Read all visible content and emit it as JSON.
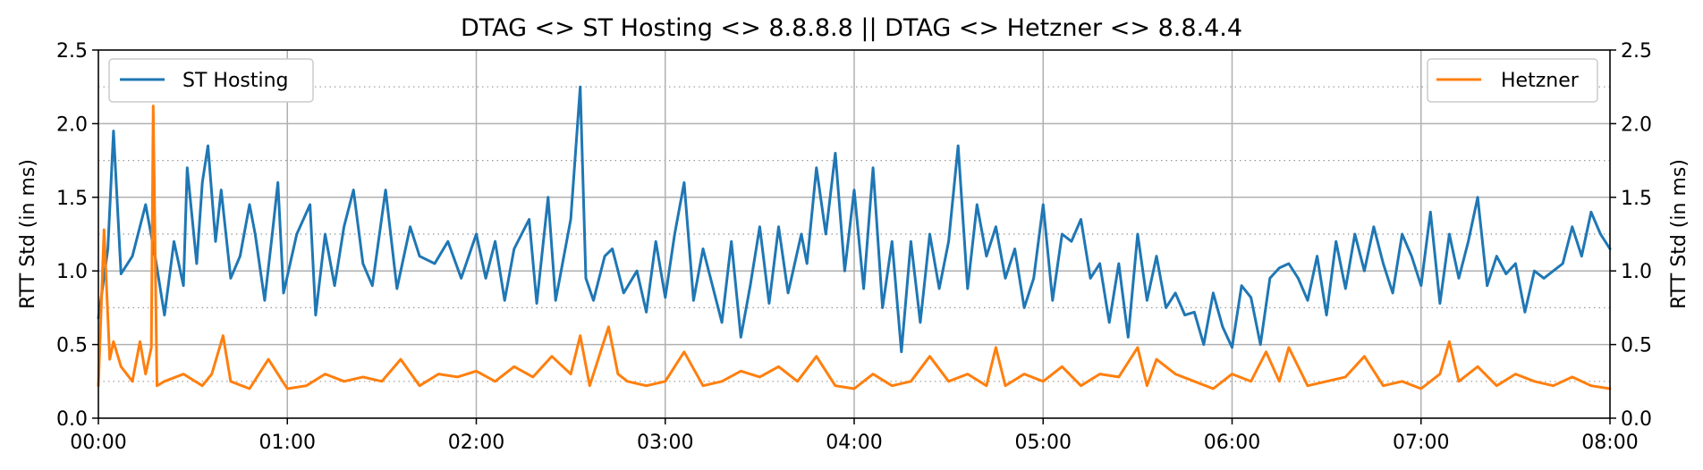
{
  "chart_data": {
    "type": "line",
    "title": "DTAG <> ST Hosting <> 8.8.8.8 || DTAG <> Hetzner <> 8.8.4.4",
    "xlabel": "",
    "ylabel_left": "RTT Std (in ms)",
    "ylabel_right": "RTT Std (in ms)",
    "x_range_hours": [
      0,
      8
    ],
    "x_ticks": [
      "00:00",
      "01:00",
      "02:00",
      "03:00",
      "04:00",
      "05:00",
      "06:00",
      "07:00",
      "08:00"
    ],
    "ylim": [
      0,
      2.5
    ],
    "y_ticks": [
      "0.0",
      "0.5",
      "1.0",
      "1.5",
      "2.0",
      "2.5"
    ],
    "grid": true,
    "minor_grid": "dotted at 0.25 steps",
    "series": [
      {
        "name": "ST Hosting",
        "color": "#1f77b4",
        "legend_position": "upper-left",
        "points": [
          [
            0.0,
            0.68
          ],
          [
            0.05,
            1.15
          ],
          [
            0.08,
            1.95
          ],
          [
            0.12,
            0.98
          ],
          [
            0.18,
            1.1
          ],
          [
            0.25,
            1.45
          ],
          [
            0.3,
            1.1
          ],
          [
            0.35,
            0.7
          ],
          [
            0.4,
            1.2
          ],
          [
            0.45,
            0.9
          ],
          [
            0.47,
            1.7
          ],
          [
            0.52,
            1.05
          ],
          [
            0.55,
            1.6
          ],
          [
            0.58,
            1.85
          ],
          [
            0.62,
            1.2
          ],
          [
            0.65,
            1.55
          ],
          [
            0.7,
            0.95
          ],
          [
            0.75,
            1.1
          ],
          [
            0.8,
            1.45
          ],
          [
            0.83,
            1.25
          ],
          [
            0.88,
            0.8
          ],
          [
            0.92,
            1.25
          ],
          [
            0.95,
            1.6
          ],
          [
            0.98,
            0.85
          ],
          [
            1.05,
            1.25
          ],
          [
            1.12,
            1.45
          ],
          [
            1.15,
            0.7
          ],
          [
            1.2,
            1.25
          ],
          [
            1.25,
            0.9
          ],
          [
            1.3,
            1.3
          ],
          [
            1.35,
            1.55
          ],
          [
            1.4,
            1.05
          ],
          [
            1.45,
            0.9
          ],
          [
            1.52,
            1.55
          ],
          [
            1.58,
            0.88
          ],
          [
            1.65,
            1.3
          ],
          [
            1.7,
            1.1
          ],
          [
            1.78,
            1.05
          ],
          [
            1.85,
            1.2
          ],
          [
            1.92,
            0.95
          ],
          [
            2.0,
            1.25
          ],
          [
            2.05,
            0.95
          ],
          [
            2.1,
            1.2
          ],
          [
            2.15,
            0.8
          ],
          [
            2.2,
            1.15
          ],
          [
            2.28,
            1.35
          ],
          [
            2.32,
            0.78
          ],
          [
            2.38,
            1.5
          ],
          [
            2.42,
            0.8
          ],
          [
            2.5,
            1.35
          ],
          [
            2.55,
            2.25
          ],
          [
            2.58,
            0.95
          ],
          [
            2.62,
            0.8
          ],
          [
            2.68,
            1.1
          ],
          [
            2.72,
            1.15
          ],
          [
            2.78,
            0.85
          ],
          [
            2.85,
            1.0
          ],
          [
            2.9,
            0.72
          ],
          [
            2.95,
            1.2
          ],
          [
            3.0,
            0.82
          ],
          [
            3.05,
            1.25
          ],
          [
            3.1,
            1.6
          ],
          [
            3.15,
            0.8
          ],
          [
            3.2,
            1.15
          ],
          [
            3.3,
            0.65
          ],
          [
            3.35,
            1.2
          ],
          [
            3.4,
            0.55
          ],
          [
            3.45,
            0.9
          ],
          [
            3.5,
            1.3
          ],
          [
            3.55,
            0.78
          ],
          [
            3.6,
            1.3
          ],
          [
            3.65,
            0.85
          ],
          [
            3.72,
            1.25
          ],
          [
            3.75,
            1.05
          ],
          [
            3.8,
            1.7
          ],
          [
            3.85,
            1.25
          ],
          [
            3.9,
            1.8
          ],
          [
            3.95,
            1.0
          ],
          [
            4.0,
            1.55
          ],
          [
            4.05,
            0.88
          ],
          [
            4.1,
            1.7
          ],
          [
            4.15,
            0.75
          ],
          [
            4.2,
            1.2
          ],
          [
            4.25,
            0.45
          ],
          [
            4.3,
            1.2
          ],
          [
            4.35,
            0.65
          ],
          [
            4.4,
            1.25
          ],
          [
            4.45,
            0.88
          ],
          [
            4.5,
            1.2
          ],
          [
            4.55,
            1.85
          ],
          [
            4.6,
            0.88
          ],
          [
            4.65,
            1.45
          ],
          [
            4.7,
            1.1
          ],
          [
            4.75,
            1.3
          ],
          [
            4.8,
            0.95
          ],
          [
            4.85,
            1.15
          ],
          [
            4.9,
            0.75
          ],
          [
            4.95,
            0.95
          ],
          [
            5.0,
            1.45
          ],
          [
            5.05,
            0.8
          ],
          [
            5.1,
            1.25
          ],
          [
            5.15,
            1.2
          ],
          [
            5.2,
            1.35
          ],
          [
            5.25,
            0.95
          ],
          [
            5.3,
            1.05
          ],
          [
            5.35,
            0.65
          ],
          [
            5.4,
            1.05
          ],
          [
            5.45,
            0.55
          ],
          [
            5.5,
            1.25
          ],
          [
            5.55,
            0.8
          ],
          [
            5.6,
            1.1
          ],
          [
            5.65,
            0.75
          ],
          [
            5.7,
            0.85
          ],
          [
            5.75,
            0.7
          ],
          [
            5.8,
            0.72
          ],
          [
            5.85,
            0.5
          ],
          [
            5.9,
            0.85
          ],
          [
            5.95,
            0.62
          ],
          [
            6.0,
            0.48
          ],
          [
            6.05,
            0.9
          ],
          [
            6.1,
            0.82
          ],
          [
            6.15,
            0.5
          ],
          [
            6.2,
            0.95
          ],
          [
            6.25,
            1.02
          ],
          [
            6.3,
            1.05
          ],
          [
            6.35,
            0.95
          ],
          [
            6.4,
            0.8
          ],
          [
            6.45,
            1.1
          ],
          [
            6.5,
            0.7
          ],
          [
            6.55,
            1.2
          ],
          [
            6.6,
            0.88
          ],
          [
            6.65,
            1.25
          ],
          [
            6.7,
            1.0
          ],
          [
            6.75,
            1.3
          ],
          [
            6.8,
            1.05
          ],
          [
            6.85,
            0.85
          ],
          [
            6.9,
            1.25
          ],
          [
            6.95,
            1.1
          ],
          [
            7.0,
            0.9
          ],
          [
            7.05,
            1.4
          ],
          [
            7.1,
            0.78
          ],
          [
            7.15,
            1.25
          ],
          [
            7.2,
            0.95
          ],
          [
            7.25,
            1.2
          ],
          [
            7.3,
            1.5
          ],
          [
            7.35,
            0.9
          ],
          [
            7.4,
            1.1
          ],
          [
            7.45,
            0.98
          ],
          [
            7.5,
            1.05
          ],
          [
            7.55,
            0.72
          ],
          [
            7.6,
            1.0
          ],
          [
            7.65,
            0.95
          ],
          [
            7.7,
            1.0
          ],
          [
            7.75,
            1.05
          ],
          [
            7.8,
            1.3
          ],
          [
            7.85,
            1.1
          ],
          [
            7.9,
            1.4
          ],
          [
            7.95,
            1.25
          ],
          [
            8.0,
            1.15
          ]
        ]
      },
      {
        "name": "Hetzner",
        "color": "#ff7f0e",
        "legend_position": "upper-right",
        "points": [
          [
            0.0,
            0.22
          ],
          [
            0.03,
            1.28
          ],
          [
            0.06,
            0.4
          ],
          [
            0.08,
            0.52
          ],
          [
            0.12,
            0.35
          ],
          [
            0.18,
            0.25
          ],
          [
            0.22,
            0.52
          ],
          [
            0.25,
            0.3
          ],
          [
            0.28,
            0.48
          ],
          [
            0.29,
            2.12
          ],
          [
            0.31,
            0.22
          ],
          [
            0.35,
            0.25
          ],
          [
            0.45,
            0.3
          ],
          [
            0.55,
            0.22
          ],
          [
            0.6,
            0.3
          ],
          [
            0.66,
            0.56
          ],
          [
            0.7,
            0.25
          ],
          [
            0.8,
            0.2
          ],
          [
            0.9,
            0.4
          ],
          [
            1.0,
            0.2
          ],
          [
            1.1,
            0.22
          ],
          [
            1.2,
            0.3
          ],
          [
            1.3,
            0.25
          ],
          [
            1.4,
            0.28
          ],
          [
            1.5,
            0.25
          ],
          [
            1.6,
            0.4
          ],
          [
            1.7,
            0.22
          ],
          [
            1.8,
            0.3
          ],
          [
            1.9,
            0.28
          ],
          [
            2.0,
            0.32
          ],
          [
            2.1,
            0.25
          ],
          [
            2.2,
            0.35
          ],
          [
            2.3,
            0.28
          ],
          [
            2.4,
            0.42
          ],
          [
            2.5,
            0.3
          ],
          [
            2.55,
            0.56
          ],
          [
            2.6,
            0.22
          ],
          [
            2.7,
            0.62
          ],
          [
            2.75,
            0.3
          ],
          [
            2.8,
            0.25
          ],
          [
            2.9,
            0.22
          ],
          [
            3.0,
            0.25
          ],
          [
            3.1,
            0.45
          ],
          [
            3.2,
            0.22
          ],
          [
            3.3,
            0.25
          ],
          [
            3.4,
            0.32
          ],
          [
            3.5,
            0.28
          ],
          [
            3.6,
            0.35
          ],
          [
            3.7,
            0.25
          ],
          [
            3.8,
            0.42
          ],
          [
            3.9,
            0.22
          ],
          [
            4.0,
            0.2
          ],
          [
            4.1,
            0.3
          ],
          [
            4.2,
            0.22
          ],
          [
            4.3,
            0.25
          ],
          [
            4.4,
            0.42
          ],
          [
            4.5,
            0.25
          ],
          [
            4.6,
            0.3
          ],
          [
            4.7,
            0.22
          ],
          [
            4.75,
            0.48
          ],
          [
            4.8,
            0.22
          ],
          [
            4.9,
            0.3
          ],
          [
            5.0,
            0.25
          ],
          [
            5.1,
            0.35
          ],
          [
            5.2,
            0.22
          ],
          [
            5.3,
            0.3
          ],
          [
            5.4,
            0.28
          ],
          [
            5.5,
            0.48
          ],
          [
            5.55,
            0.22
          ],
          [
            5.6,
            0.4
          ],
          [
            5.7,
            0.3
          ],
          [
            5.8,
            0.25
          ],
          [
            5.9,
            0.2
          ],
          [
            6.0,
            0.3
          ],
          [
            6.1,
            0.25
          ],
          [
            6.18,
            0.45
          ],
          [
            6.25,
            0.25
          ],
          [
            6.3,
            0.48
          ],
          [
            6.4,
            0.22
          ],
          [
            6.5,
            0.25
          ],
          [
            6.6,
            0.28
          ],
          [
            6.7,
            0.42
          ],
          [
            6.8,
            0.22
          ],
          [
            6.9,
            0.25
          ],
          [
            7.0,
            0.2
          ],
          [
            7.1,
            0.3
          ],
          [
            7.15,
            0.52
          ],
          [
            7.2,
            0.25
          ],
          [
            7.3,
            0.35
          ],
          [
            7.4,
            0.22
          ],
          [
            7.5,
            0.3
          ],
          [
            7.6,
            0.25
          ],
          [
            7.7,
            0.22
          ],
          [
            7.8,
            0.28
          ],
          [
            7.9,
            0.22
          ],
          [
            8.0,
            0.2
          ]
        ]
      }
    ]
  }
}
